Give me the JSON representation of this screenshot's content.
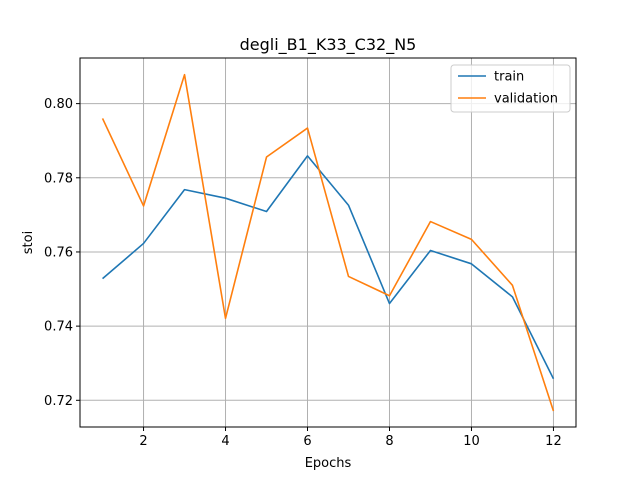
{
  "chart_data": {
    "type": "line",
    "title": "degli_B1_K33_C32_N5",
    "xlabel": "Epochs",
    "ylabel": "stoi",
    "x": [
      1,
      2,
      3,
      4,
      5,
      6,
      7,
      8,
      9,
      10,
      11,
      12
    ],
    "xlim": [
      0.45,
      12.55
    ],
    "ylim": [
      0.7128,
      0.8123
    ],
    "xticks": [
      2,
      4,
      6,
      8,
      10,
      12
    ],
    "xtick_labels": [
      "2",
      "4",
      "6",
      "8",
      "10",
      "12"
    ],
    "yticks": [
      0.72,
      0.74,
      0.76,
      0.78,
      0.8
    ],
    "ytick_labels": [
      "0.72",
      "0.74",
      "0.76",
      "0.78",
      "0.80"
    ],
    "grid": true,
    "legend_position": "top-right",
    "series": [
      {
        "name": "train",
        "color": "#1f77b4",
        "values": [
          0.7528,
          0.7623,
          0.7768,
          0.7745,
          0.7709,
          0.7859,
          0.7726,
          0.7461,
          0.7604,
          0.7568,
          0.7479,
          0.7258
        ]
      },
      {
        "name": "validation",
        "color": "#ff7f0e",
        "values": [
          0.796,
          0.7724,
          0.8078,
          0.7421,
          0.7856,
          0.7934,
          0.7534,
          0.7482,
          0.7682,
          0.7634,
          0.751,
          0.7171
        ]
      }
    ]
  }
}
